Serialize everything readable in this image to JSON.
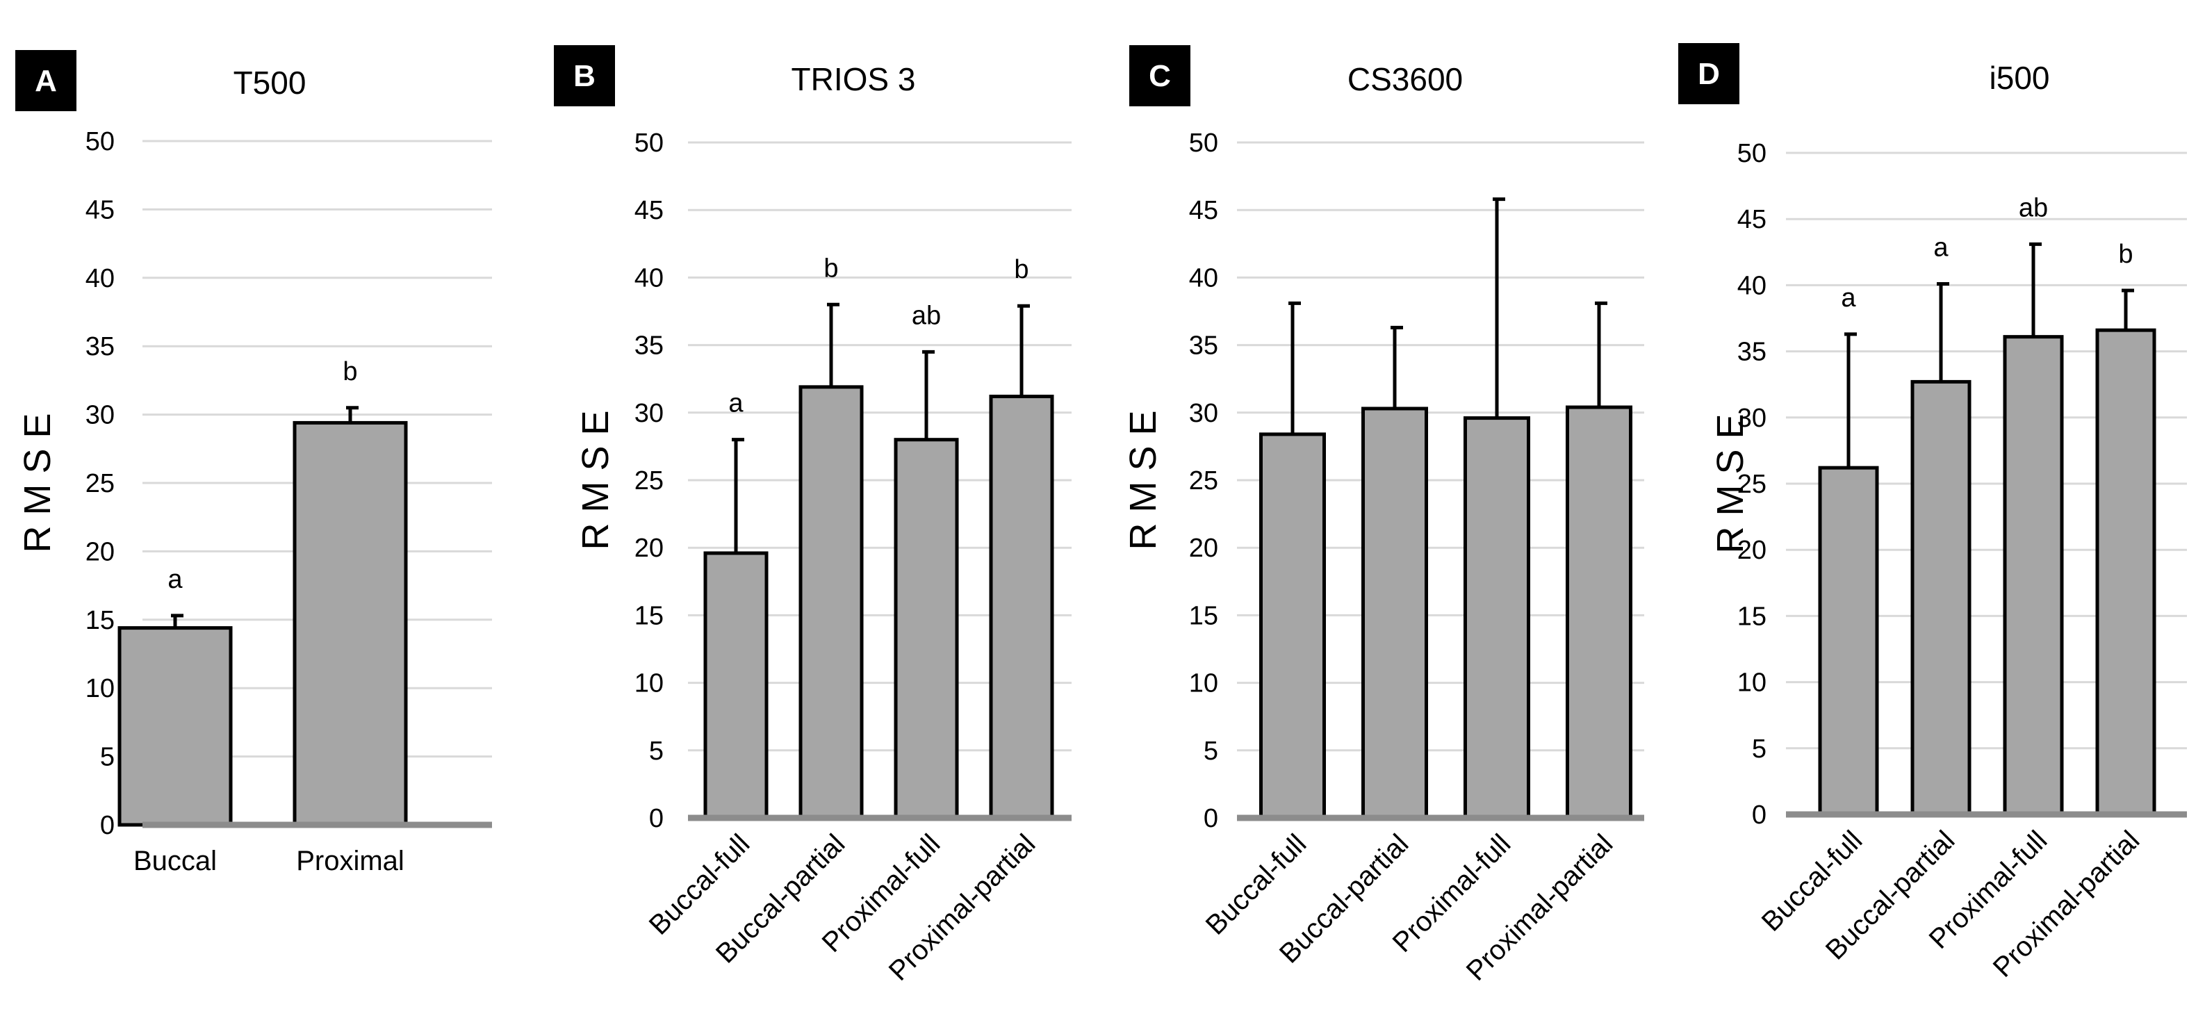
{
  "figure": {
    "y_axis_label": "R M S E",
    "background_color": "#ffffff",
    "bar_fill_color": "#a6a6a6",
    "bar_stroke_color": "#000000",
    "grid_color": "#d9d9d9",
    "baseline_color": "#8c8c8c",
    "panel_letter_bg": "#000000",
    "panel_letter_fg": "#ffffff"
  },
  "chart_data": [
    {
      "type": "bar",
      "panel": "A",
      "title": "T500",
      "ylabel": "R M S E",
      "xlabel": "",
      "ylim": [
        0,
        50
      ],
      "yticks": [
        0,
        5,
        10,
        15,
        20,
        25,
        30,
        35,
        40,
        45,
        50
      ],
      "grid": true,
      "rotated_labels": false,
      "categories": [
        "Buccal",
        "Proximal"
      ],
      "values": [
        14.4,
        29.4
      ],
      "errors": [
        0.9,
        1.1
      ],
      "letters": [
        "a",
        "b"
      ]
    },
    {
      "type": "bar",
      "panel": "B",
      "title": "TRIOS 3",
      "ylabel": "R M S E",
      "xlabel": "",
      "ylim": [
        0,
        50
      ],
      "yticks": [
        0,
        5,
        10,
        15,
        20,
        25,
        30,
        35,
        40,
        45,
        50
      ],
      "grid": true,
      "rotated_labels": true,
      "categories": [
        "Buccal-full",
        "Buccal-partial",
        "Proximal-full",
        "Proximal-partial"
      ],
      "values": [
        19.6,
        31.9,
        28.0,
        31.2
      ],
      "errors": [
        8.4,
        6.1,
        6.5,
        6.7
      ],
      "letters": [
        "a",
        "b",
        "ab",
        "b"
      ]
    },
    {
      "type": "bar",
      "panel": "C",
      "title": "CS3600",
      "ylabel": "R M S E",
      "xlabel": "",
      "ylim": [
        0,
        50
      ],
      "yticks": [
        0,
        5,
        10,
        15,
        20,
        25,
        30,
        35,
        40,
        45,
        50
      ],
      "grid": true,
      "rotated_labels": true,
      "categories": [
        "Buccal-full",
        "Buccal-partial",
        "Proximal-full",
        "Proximal-partial"
      ],
      "values": [
        28.4,
        30.3,
        29.6,
        30.4
      ],
      "errors": [
        9.7,
        6.0,
        16.2,
        7.7
      ],
      "letters": [
        "",
        "",
        "",
        ""
      ]
    },
    {
      "type": "bar",
      "panel": "D",
      "title": "i500",
      "ylabel": "R M S E",
      "xlabel": "",
      "ylim": [
        0,
        50
      ],
      "yticks": [
        0,
        5,
        10,
        15,
        20,
        25,
        30,
        35,
        40,
        45,
        50
      ],
      "grid": true,
      "rotated_labels": true,
      "categories": [
        "Buccal-full",
        "Buccal-partial",
        "Proximal-full",
        "Proximal-partial"
      ],
      "values": [
        26.2,
        32.7,
        36.1,
        36.6
      ],
      "errors": [
        10.1,
        7.4,
        7.0,
        3.0
      ],
      "letters": [
        "a",
        "a",
        "ab",
        "b"
      ]
    }
  ]
}
